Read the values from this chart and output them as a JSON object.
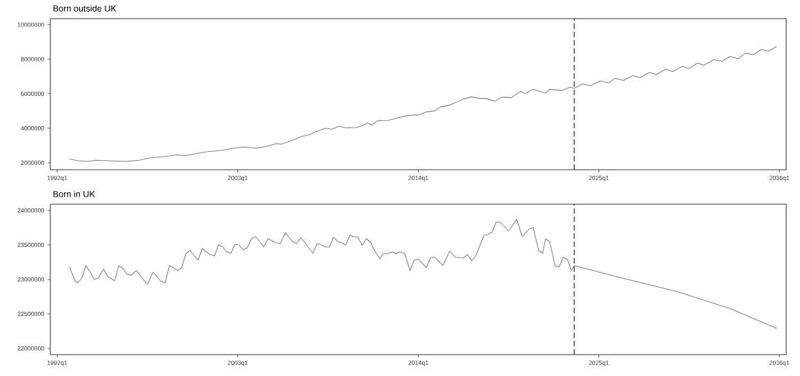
{
  "chart_data": [
    {
      "type": "line",
      "title": "Born outside UK",
      "xlim": [
        "1991-08",
        "2036-06"
      ],
      "ylim": [
        1600000,
        10350000
      ],
      "xticks": [
        {
          "value": "1992-01",
          "label": "1992q1"
        },
        {
          "value": "2003-01",
          "label": "2003q1"
        },
        {
          "value": "2014-01",
          "label": "2014q1"
        },
        {
          "value": "2025-01",
          "label": "2025q1"
        },
        {
          "value": "2036-01",
          "label": "2036q1"
        }
      ],
      "yticks": [
        2000000,
        4000000,
        6000000,
        8000000,
        10000000
      ],
      "ref_lines": [
        {
          "axis": "x",
          "value": "2023-07",
          "color": "#000000",
          "line_style": "dashed"
        }
      ],
      "grid": false,
      "marker": "none",
      "line_style": "solid",
      "series": [
        {
          "color": "#808080",
          "x": [
            "1992-10",
            "1993-04",
            "1993-12",
            "1994-05",
            "1995-05",
            "1996-03",
            "1997-01",
            "1997-08",
            "1998-06",
            "1999-04",
            "1999-11",
            "2000-07",
            "2001-03",
            "2002-01",
            "2002-10",
            "2003-06",
            "2004-02",
            "2004-10",
            "2005-05",
            "2005-09",
            "2006-05",
            "2006-11",
            "2007-05",
            "2007-10",
            "2008-05",
            "2008-10",
            "2009-03",
            "2009-08",
            "2010-04",
            "2010-07",
            "2010-12",
            "2011-03",
            "2011-07",
            "2012-03",
            "2012-07",
            "2013-02",
            "2013-10",
            "2014-01",
            "2014-07",
            "2015-01",
            "2015-05",
            "2015-12",
            "2016-05",
            "2016-10",
            "2017-04",
            "2017-10",
            "2018-03",
            "2018-09",
            "2019-02",
            "2019-09",
            "2020-04",
            "2020-07",
            "2021-01",
            "2021-10",
            "2022-01",
            "2022-10",
            "2023-04",
            "2023-07",
            "2024-01",
            "2024-07",
            "2025-02",
            "2025-08",
            "2026-01",
            "2026-07",
            "2027-02",
            "2027-07",
            "2028-02",
            "2028-07",
            "2029-02",
            "2029-07",
            "2030-02",
            "2030-07",
            "2031-01",
            "2031-06",
            "2032-01",
            "2032-07",
            "2033-01",
            "2033-07",
            "2033-12",
            "2034-06",
            "2034-12",
            "2035-05",
            "2035-11"
          ],
          "values": [
            2230000,
            2120000,
            2080000,
            2150000,
            2110000,
            2080000,
            2150000,
            2280000,
            2350000,
            2460000,
            2420000,
            2540000,
            2650000,
            2720000,
            2850000,
            2920000,
            2850000,
            2950000,
            3110000,
            3080000,
            3310000,
            3510000,
            3620000,
            3800000,
            4000000,
            3950000,
            4120000,
            4030000,
            4050000,
            4120000,
            4310000,
            4180000,
            4430000,
            4460000,
            4540000,
            4690000,
            4770000,
            4770000,
            4950000,
            5000000,
            5230000,
            5350000,
            5510000,
            5690000,
            5820000,
            5720000,
            5720000,
            5570000,
            5800000,
            5770000,
            6150000,
            6000000,
            6260000,
            6030000,
            6260000,
            6180000,
            6380000,
            6310000,
            6570000,
            6460000,
            6740000,
            6620000,
            6890000,
            6770000,
            7050000,
            6920000,
            7230000,
            7110000,
            7420000,
            7280000,
            7580000,
            7460000,
            7770000,
            7650000,
            7970000,
            7880000,
            8150000,
            8030000,
            8350000,
            8260000,
            8570000,
            8460000,
            8740000
          ]
        }
      ]
    },
    {
      "type": "line",
      "title": "Born in UK",
      "xlim": [
        "1991-08",
        "2036-06"
      ],
      "ylim": [
        21910000,
        24090000
      ],
      "xticks": [
        {
          "value": "1992-01",
          "label": "1992q1"
        },
        {
          "value": "2003-01",
          "label": "2003q1"
        },
        {
          "value": "2014-01",
          "label": "2014q1"
        },
        {
          "value": "2025-01",
          "label": "2025q1"
        },
        {
          "value": "2036-01",
          "label": "2036q1"
        }
      ],
      "yticks": [
        22000000,
        22500000,
        23000000,
        23500000,
        24000000
      ],
      "ref_lines": [
        {
          "axis": "x",
          "value": "2023-07",
          "color": "#000000",
          "line_style": "dashed"
        }
      ],
      "grid": false,
      "marker": "none",
      "line_style": "solid",
      "series": [
        {
          "color": "#808080",
          "x": [
            "1992-10",
            "1993-02",
            "1993-04",
            "1993-07",
            "1993-10",
            "1994-01",
            "1994-04",
            "1994-07",
            "1994-11",
            "1995-02",
            "1995-07",
            "1995-10",
            "1996-01",
            "1996-04",
            "1996-07",
            "1996-11",
            "1997-01",
            "1997-05",
            "1997-07",
            "1997-11",
            "1998-01",
            "1998-05",
            "1998-08",
            "1998-11",
            "1999-02",
            "1999-05",
            "1999-08",
            "1999-11",
            "2000-02",
            "2000-05",
            "2000-08",
            "2000-11",
            "2001-02",
            "2001-05",
            "2001-08",
            "2001-11",
            "2002-02",
            "2002-05",
            "2002-08",
            "2002-11",
            "2003-02",
            "2003-05",
            "2003-08",
            "2003-11",
            "2004-02",
            "2004-05",
            "2004-08",
            "2004-11",
            "2005-02",
            "2005-05",
            "2005-08",
            "2005-12",
            "2006-02",
            "2006-05",
            "2006-08",
            "2006-11",
            "2007-02",
            "2007-05",
            "2007-08",
            "2007-11",
            "2008-02",
            "2008-05",
            "2008-08",
            "2008-11",
            "2009-02",
            "2009-05",
            "2009-08",
            "2009-11",
            "2010-02",
            "2010-05",
            "2010-08",
            "2010-11",
            "2011-02",
            "2011-05",
            "2011-09",
            "2011-11",
            "2012-02",
            "2012-06",
            "2012-09",
            "2012-11",
            "2013-03",
            "2013-07",
            "2013-10",
            "2014-01",
            "2014-07",
            "2014-10",
            "2015-01",
            "2015-07",
            "2015-12",
            "2016-04",
            "2016-10",
            "2017-01",
            "2017-04",
            "2017-07",
            "2018-01",
            "2018-04",
            "2018-07",
            "2018-10",
            "2019-01",
            "2019-07",
            "2020-01",
            "2020-05",
            "2020-10",
            "2021-01",
            "2021-05",
            "2021-08",
            "2021-10",
            "2022-01",
            "2022-05",
            "2022-08",
            "2022-11",
            "2023-02",
            "2023-05",
            "2023-07",
            "2026-08",
            "2029-11",
            "2033-02",
            "2035-11"
          ],
          "values": [
            23180000,
            22980000,
            22950000,
            23020000,
            23200000,
            23110000,
            23000000,
            23020000,
            23150000,
            23040000,
            22980000,
            23200000,
            23160000,
            23080000,
            23060000,
            23130000,
            23080000,
            22970000,
            22930000,
            23100000,
            23060000,
            22970000,
            22950000,
            23200000,
            23170000,
            23130000,
            23170000,
            23370000,
            23420000,
            23350000,
            23280000,
            23450000,
            23400000,
            23360000,
            23340000,
            23500000,
            23470000,
            23400000,
            23380000,
            23510000,
            23500000,
            23430000,
            23460000,
            23590000,
            23620000,
            23550000,
            23470000,
            23590000,
            23560000,
            23530000,
            23520000,
            23680000,
            23620000,
            23550000,
            23520000,
            23600000,
            23540000,
            23450000,
            23380000,
            23520000,
            23500000,
            23470000,
            23470000,
            23610000,
            23550000,
            23530000,
            23500000,
            23640000,
            23620000,
            23610000,
            23490000,
            23590000,
            23540000,
            23420000,
            23300000,
            23370000,
            23370000,
            23400000,
            23370000,
            23400000,
            23380000,
            23130000,
            23280000,
            23290000,
            23170000,
            23320000,
            23320000,
            23200000,
            23410000,
            23320000,
            23310000,
            23360000,
            23270000,
            23340000,
            23640000,
            23650000,
            23690000,
            23830000,
            23830000,
            23700000,
            23870000,
            23620000,
            23730000,
            23750000,
            23420000,
            23380000,
            23590000,
            23550000,
            23200000,
            23180000,
            23320000,
            23290000,
            23130000,
            23200000,
            23010000,
            22820000,
            22570000,
            22290000
          ]
        }
      ]
    }
  ]
}
